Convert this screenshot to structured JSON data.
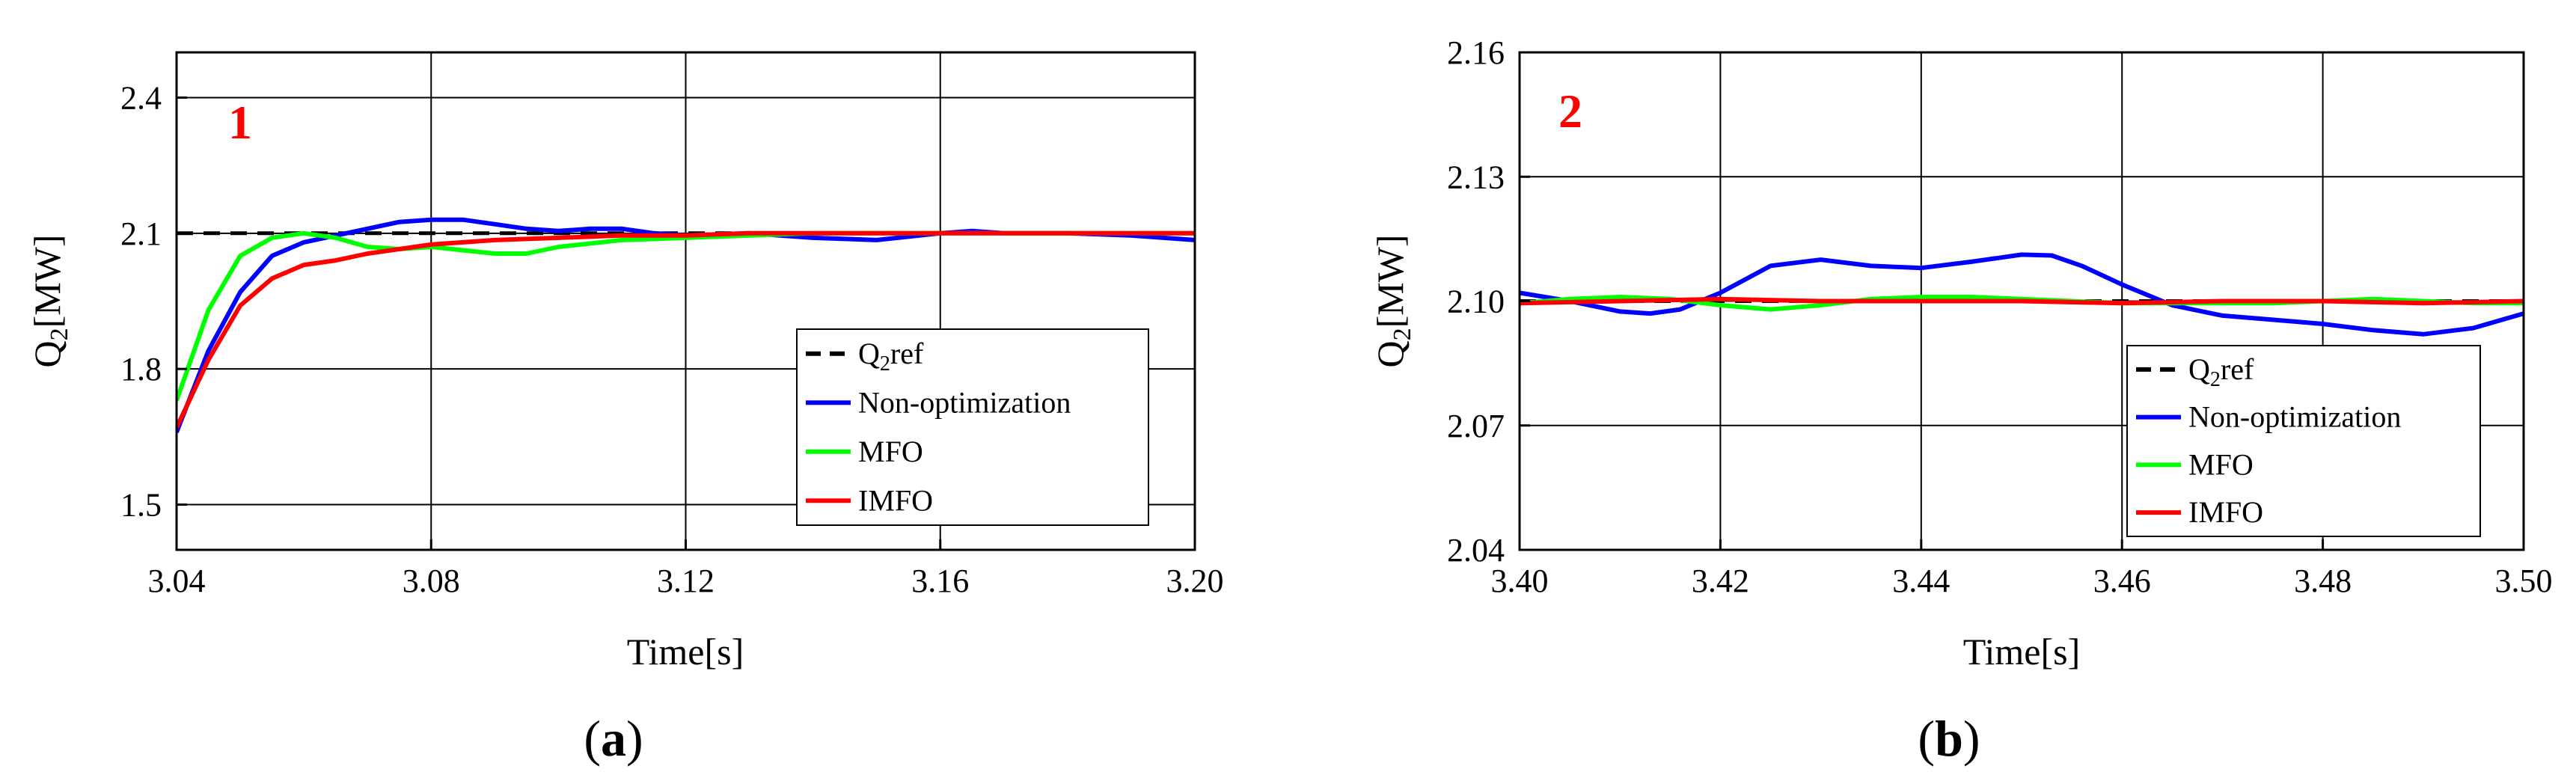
{
  "figure": {
    "legend_labels": {
      "ref": "ref",
      "non_opt": "Non-optimization",
      "mfo": "MFO",
      "imfo": "IMFO"
    },
    "ylabel": {
      "base": "Q",
      "sub": "2",
      "unit": "[MW]"
    },
    "ref_label": {
      "base": "Q",
      "sub": "2",
      "suffix": "ref"
    },
    "xlabel": "Time[s]",
    "colors": {
      "ref": "#000000",
      "non_opt": "#0000ff",
      "mfo": "#00ff00",
      "imfo": "#ff0000"
    }
  },
  "chart_data": [
    {
      "type": "line",
      "panel_label": "(a)",
      "panel_letter": "a",
      "marker": "1",
      "xlim": [
        3.04,
        3.2
      ],
      "ylim": [
        1.4,
        2.5
      ],
      "xticks": [
        "3.04",
        "3.08",
        "3.12",
        "3.16",
        "3.20"
      ],
      "xtick_values": [
        3.04,
        3.08,
        3.12,
        3.16,
        3.2
      ],
      "yticks": [
        "1.5",
        "1.8",
        "2.1",
        "2.4"
      ],
      "ytick_values": [
        1.5,
        1.8,
        2.1,
        2.4
      ],
      "grid": true,
      "legend_position": "bottom-right",
      "series": [
        {
          "key": "ref",
          "x": [
            3.04,
            3.2
          ],
          "y": [
            2.1,
            2.1
          ]
        },
        {
          "key": "non_opt",
          "x": [
            3.04,
            3.045,
            3.05,
            3.055,
            3.06,
            3.065,
            3.07,
            3.075,
            3.08,
            3.085,
            3.09,
            3.095,
            3.1,
            3.105,
            3.11,
            3.115,
            3.12,
            3.13,
            3.14,
            3.15,
            3.16,
            3.165,
            3.17,
            3.18,
            3.19,
            3.2
          ],
          "y": [
            1.66,
            1.84,
            1.97,
            2.05,
            2.08,
            2.095,
            2.11,
            2.125,
            2.13,
            2.13,
            2.12,
            2.11,
            2.105,
            2.11,
            2.11,
            2.1,
            2.095,
            2.1,
            2.09,
            2.085,
            2.1,
            2.105,
            2.1,
            2.1,
            2.095,
            2.085
          ]
        },
        {
          "key": "mfo",
          "x": [
            3.04,
            3.045,
            3.05,
            3.055,
            3.06,
            3.065,
            3.07,
            3.075,
            3.08,
            3.09,
            3.095,
            3.1,
            3.11,
            3.12,
            3.13,
            3.14,
            3.15,
            3.16,
            3.17,
            3.18,
            3.19,
            3.2
          ],
          "y": [
            1.73,
            1.93,
            2.05,
            2.09,
            2.1,
            2.09,
            2.07,
            2.065,
            2.07,
            2.055,
            2.055,
            2.07,
            2.085,
            2.09,
            2.095,
            2.1,
            2.1,
            2.1,
            2.1,
            2.1,
            2.1,
            2.1
          ]
        },
        {
          "key": "imfo",
          "x": [
            3.04,
            3.045,
            3.05,
            3.055,
            3.06,
            3.065,
            3.07,
            3.08,
            3.09,
            3.1,
            3.11,
            3.12,
            3.13,
            3.14,
            3.15,
            3.16,
            3.17,
            3.18,
            3.19,
            3.2
          ],
          "y": [
            1.67,
            1.82,
            1.94,
            2.0,
            2.03,
            2.04,
            2.055,
            2.075,
            2.085,
            2.09,
            2.095,
            2.095,
            2.1,
            2.1,
            2.1,
            2.1,
            2.1,
            2.1,
            2.1,
            2.1
          ]
        }
      ]
    },
    {
      "type": "line",
      "panel_label": "(b)",
      "panel_letter": "b",
      "marker": "2",
      "xlim": [
        3.4,
        3.5
      ],
      "ylim": [
        2.04,
        2.16
      ],
      "xticks": [
        "3.40",
        "3.42",
        "3.44",
        "3.46",
        "3.48",
        "3.50"
      ],
      "xtick_values": [
        3.4,
        3.42,
        3.44,
        3.46,
        3.48,
        3.5
      ],
      "yticks": [
        "2.04",
        "2.07",
        "2.10",
        "2.13",
        "2.16"
      ],
      "ytick_values": [
        2.04,
        2.07,
        2.1,
        2.13,
        2.16
      ],
      "grid": true,
      "legend_position": "bottom-right",
      "series": [
        {
          "key": "ref",
          "x": [
            3.4,
            3.5
          ],
          "y": [
            2.1,
            2.1
          ]
        },
        {
          "key": "non_opt",
          "x": [
            3.4,
            3.405,
            3.41,
            3.413,
            3.416,
            3.42,
            3.425,
            3.43,
            3.435,
            3.44,
            3.445,
            3.45,
            3.453,
            3.456,
            3.46,
            3.465,
            3.47,
            3.475,
            3.48,
            3.485,
            3.49,
            3.495,
            3.5
          ],
          "y": [
            2.102,
            2.1,
            2.0975,
            2.097,
            2.098,
            2.102,
            2.1085,
            2.11,
            2.1085,
            2.108,
            2.1095,
            2.1112,
            2.111,
            2.1085,
            2.104,
            2.099,
            2.0965,
            2.0955,
            2.0945,
            2.093,
            2.092,
            2.0935,
            2.097
          ]
        },
        {
          "key": "mfo",
          "x": [
            3.4,
            3.405,
            3.41,
            3.415,
            3.42,
            3.425,
            3.43,
            3.435,
            3.44,
            3.445,
            3.45,
            3.455,
            3.46,
            3.465,
            3.47,
            3.475,
            3.48,
            3.485,
            3.49,
            3.495,
            3.5
          ],
          "y": [
            2.0995,
            2.1005,
            2.101,
            2.1005,
            2.099,
            2.098,
            2.099,
            2.1005,
            2.101,
            2.101,
            2.1005,
            2.1,
            2.0995,
            2.0995,
            2.0995,
            2.0995,
            2.1,
            2.1005,
            2.1,
            2.0995,
            2.0995
          ]
        },
        {
          "key": "imfo",
          "x": [
            3.4,
            3.41,
            3.42,
            3.43,
            3.44,
            3.45,
            3.46,
            3.47,
            3.48,
            3.49,
            3.5
          ],
          "y": [
            2.0995,
            2.1,
            2.1005,
            2.1,
            2.1,
            2.1,
            2.0995,
            2.1,
            2.1,
            2.0995,
            2.1
          ]
        }
      ]
    }
  ]
}
